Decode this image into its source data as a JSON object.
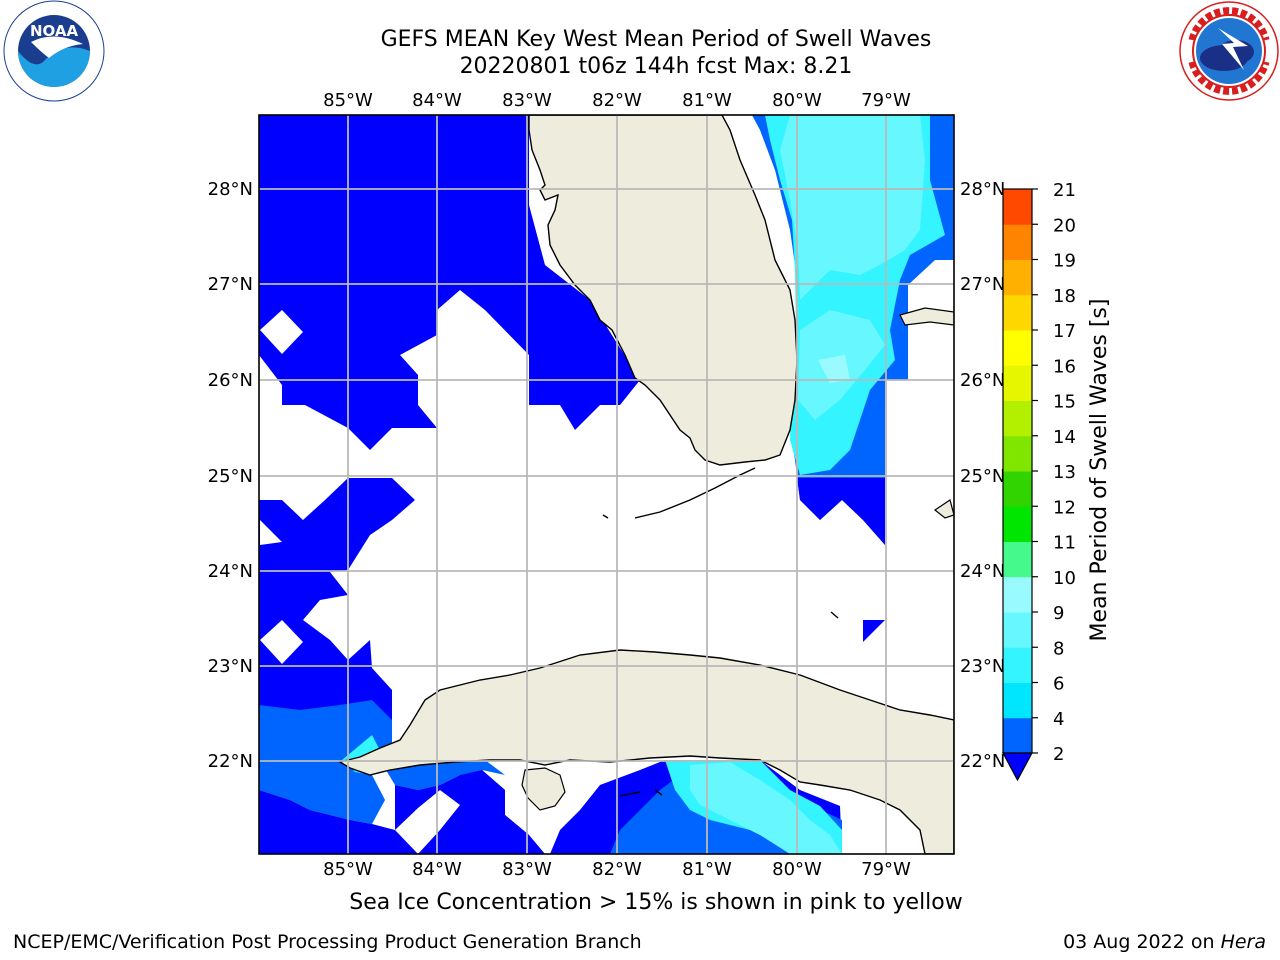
{
  "title": {
    "line1": "GEFS MEAN Key West Mean Period of Swell Waves",
    "line2": "20220801 t06z 144h fcst   Max: 8.21"
  },
  "logos": {
    "left_icon": "noaa-logo",
    "right_icon": "nws-logo"
  },
  "map": {
    "lon_labels": [
      "85°W",
      "84°W",
      "83°W",
      "82°W",
      "81°W",
      "80°W",
      "79°W"
    ],
    "lat_labels": [
      "28°N",
      "27°N",
      "26°N",
      "25°N",
      "24°N",
      "23°N",
      "22°N"
    ],
    "land_color": "#eeecdc",
    "grid_color": "#b9b9b9"
  },
  "colorbar": {
    "label": "Mean Period of Swell Waves [s]",
    "ticks": [
      "2",
      "4",
      "6",
      "8",
      "9",
      "10",
      "11",
      "12",
      "13",
      "14",
      "15",
      "16",
      "17",
      "18",
      "19",
      "20",
      "21"
    ],
    "colors": [
      "#0064ff",
      "#00e6ff",
      "#33f4ff",
      "#66f7ff",
      "#99fbff",
      "#45f98c",
      "#00e600",
      "#32d400",
      "#80e600",
      "#b2f000",
      "#e6f500",
      "#ffff00",
      "#ffd700",
      "#ffb000",
      "#ff8500",
      "#ff4800",
      "#ff0000"
    ],
    "under_color": "#0000ff"
  },
  "ice_note": "Sea Ice Concentration > 15% is shown in pink to yellow",
  "footer": {
    "left": "NCEP/EMC/Verification Post Processing Product Generation Branch",
    "right_date": "03 Aug 2022 on ",
    "right_host": "Hera"
  }
}
